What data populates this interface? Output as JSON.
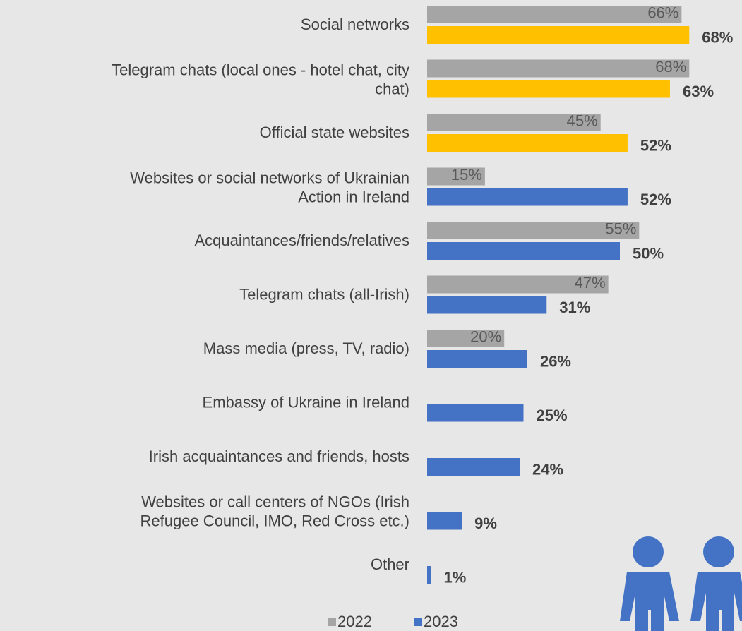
{
  "chart_data": {
    "type": "bar",
    "orientation": "horizontal",
    "categories": [
      "Social networks",
      "Telegram chats (local ones - hotel chat, city\nchat)",
      "Official state websites",
      "Websites or social networks of Ukrainian\nAction in Ireland",
      "Acquaintances/friends/relatives",
      "Telegram chats (all-Irish)",
      "Mass media (press, TV, radio)",
      "Embassy of Ukraine in Ireland",
      "Irish acquaintances and friends, hosts",
      "Websites or call centers of NGOs (Irish\nRefugee Council, IMO, Red Cross etc.)",
      "Other"
    ],
    "series": [
      {
        "name": "2022",
        "color": "#a5a5a5",
        "values": [
          66,
          68,
          45,
          15,
          55,
          47,
          20,
          null,
          null,
          null,
          null
        ],
        "value_labels": [
          "66%",
          "68%",
          "45%",
          "15%",
          "55%",
          "47%",
          "20%",
          null,
          null,
          null,
          null
        ]
      },
      {
        "name": "2023",
        "color": "#4472c4",
        "colors": [
          "#ffc000",
          "#ffc000",
          "#ffc000",
          "#4472c4",
          "#4472c4",
          "#4472c4",
          "#4472c4",
          "#4472c4",
          "#4472c4",
          "#4472c4",
          "#4472c4"
        ],
        "values": [
          68,
          63,
          52,
          52,
          50,
          31,
          26,
          25,
          24,
          9,
          1
        ],
        "value_labels": [
          "68%",
          "63%",
          "52%",
          "52%",
          "50%",
          "31%",
          "26%",
          "25%",
          "24%",
          "9%",
          "1%"
        ]
      }
    ],
    "xlim": [
      0,
      100
    ],
    "legend": "bottom"
  }
}
